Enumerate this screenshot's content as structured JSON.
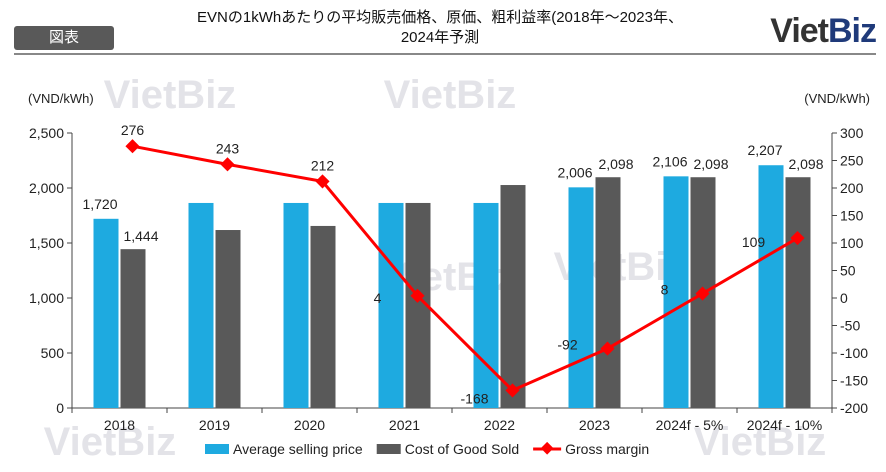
{
  "header": {
    "badge": "図表",
    "title_line1": "EVNの1kWhあたりの平均販売価格、原価、粗利益率(2018年～2023年、",
    "title_line2": "2024年予測",
    "logo_a": "Viet",
    "logo_b": "Biz"
  },
  "watermark": "VietBiz",
  "chart_data": {
    "type": "bar",
    "title": "EVNの1kWhあたりの平均販売価格、原価、粗利益率(2018年～2023年、2024年予測",
    "categories": [
      "2018",
      "2019",
      "2020",
      "2021",
      "2022",
      "2023",
      "2024f - 5%",
      "2024f - 10%"
    ],
    "ylabel": "(VND/kWh)",
    "y2label": "(VND/kWh)",
    "ylim": [
      0,
      2500
    ],
    "yticks": [
      0,
      500,
      1000,
      1500,
      2000,
      2500
    ],
    "y2lim": [
      -200,
      300
    ],
    "y2ticks": [
      -200,
      -150,
      -100,
      -50,
      0,
      50,
      100,
      150,
      200,
      250,
      300
    ],
    "series": [
      {
        "name": "Average selling price",
        "type": "bar",
        "color": "#1EAAE0",
        "values": [
          1720,
          1864,
          1864,
          1864,
          1864,
          2006,
          2106,
          2207
        ],
        "labels": [
          "1,720",
          null,
          null,
          null,
          null,
          "2,006",
          "2,106",
          "2,207"
        ]
      },
      {
        "name": "Cost of Good Sold",
        "type": "bar",
        "color": "#595959",
        "values": [
          1444,
          1618,
          1655,
          1864,
          2027,
          2098,
          2098,
          2098
        ],
        "labels": [
          "1,444",
          null,
          null,
          null,
          null,
          "2,098",
          "2,098",
          "2,098"
        ]
      },
      {
        "name": "Gross margin",
        "type": "line",
        "axis": "right",
        "color": "#FF0000",
        "values": [
          276,
          243,
          212,
          4,
          -168,
          -92,
          8,
          109
        ],
        "labels": [
          "276",
          "243",
          "212",
          "4",
          "-168",
          "-92",
          "8",
          "109"
        ]
      }
    ],
    "legend": "bottom"
  }
}
